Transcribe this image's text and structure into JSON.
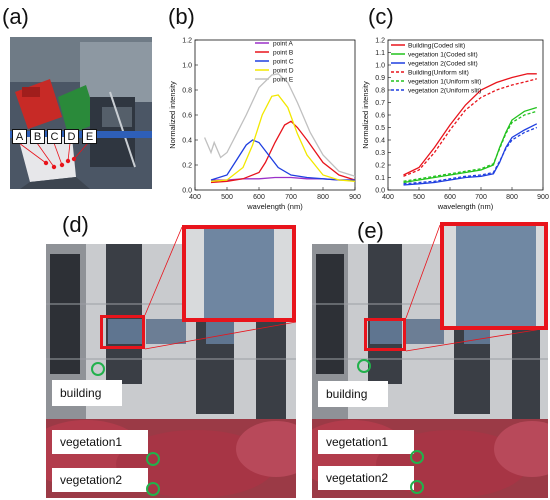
{
  "panels": {
    "a": "(a)",
    "b": "(b)",
    "c": "(c)",
    "d": "(d)",
    "e": "(e)"
  },
  "photo_a": {
    "points": [
      "A",
      "B",
      "C",
      "D",
      "E"
    ]
  },
  "photo_d": {
    "labels": {
      "building": "building",
      "vegetation1": "vegetation1",
      "vegetation2": "vegetation2"
    }
  },
  "photo_e": {
    "labels": {
      "building": "building",
      "vegetation1": "vegetation1",
      "vegetation2": "vegetation2"
    }
  },
  "colors": {
    "highlight": "#e8141c",
    "marker": "#22b14c"
  },
  "chart_data": [
    {
      "id": "b",
      "type": "line",
      "xlabel": "wavelength (nm)",
      "ylabel": "Normalized intensity",
      "xlim": [
        400,
        900
      ],
      "ylim": [
        0.0,
        1.2
      ],
      "xticks": [
        "400",
        "500",
        "600",
        "700",
        "800",
        "900"
      ],
      "yticks": [
        "0.0",
        "0.2",
        "0.4",
        "0.6",
        "0.8",
        "1.0",
        "1.2"
      ],
      "legend_position": "top-right",
      "series": [
        {
          "name": "point A",
          "color": "#9b30c8",
          "x": [
            450,
            500,
            550,
            600,
            650,
            700,
            750,
            800,
            850,
            900
          ],
          "y": [
            0.08,
            0.08,
            0.09,
            0.09,
            0.1,
            0.1,
            0.09,
            0.09,
            0.08,
            0.08
          ]
        },
        {
          "name": "point B",
          "color": "#e8141c",
          "x": [
            450,
            500,
            550,
            600,
            620,
            650,
            680,
            700,
            720,
            750,
            800,
            850,
            900
          ],
          "y": [
            0.06,
            0.07,
            0.09,
            0.14,
            0.22,
            0.38,
            0.52,
            0.55,
            0.5,
            0.4,
            0.22,
            0.12,
            0.08
          ]
        },
        {
          "name": "point C",
          "color": "#1f3fe0",
          "x": [
            450,
            500,
            530,
            560,
            580,
            600,
            630,
            660,
            700,
            750,
            800,
            850,
            900
          ],
          "y": [
            0.08,
            0.12,
            0.24,
            0.36,
            0.4,
            0.38,
            0.28,
            0.18,
            0.12,
            0.1,
            0.09,
            0.08,
            0.08
          ]
        },
        {
          "name": "point D",
          "color": "#f2e800",
          "x": [
            450,
            500,
            550,
            580,
            610,
            640,
            660,
            690,
            720,
            750,
            800,
            850,
            900
          ],
          "y": [
            0.07,
            0.08,
            0.18,
            0.36,
            0.6,
            0.75,
            0.76,
            0.66,
            0.45,
            0.28,
            0.12,
            0.08,
            0.07
          ]
        },
        {
          "name": "point E",
          "color": "#c0c0c0",
          "x": [
            430,
            450,
            460,
            480,
            500,
            530,
            560,
            600,
            640,
            660,
            690,
            720,
            760,
            800,
            850,
            900
          ],
          "y": [
            0.42,
            0.3,
            0.38,
            0.26,
            0.3,
            0.45,
            0.6,
            0.82,
            0.92,
            0.93,
            0.86,
            0.7,
            0.46,
            0.28,
            0.15,
            0.11
          ]
        }
      ]
    },
    {
      "id": "c",
      "type": "line",
      "xlabel": "wavelength (nm)",
      "ylabel": "Normalized intensity",
      "xlim": [
        400,
        900
      ],
      "ylim": [
        0.0,
        1.2
      ],
      "xticks": [
        "400",
        "500",
        "600",
        "700",
        "800",
        "900"
      ],
      "yticks": [
        "0.0",
        "0.1",
        "0.2",
        "0.3",
        "0.4",
        "0.5",
        "0.6",
        "0.7",
        "0.8",
        "0.9",
        "1.0",
        "1.1",
        "1.2"
      ],
      "legend_position": "top-left",
      "series": [
        {
          "name": "Building(Coded slit)",
          "color": "#e8141c",
          "dash": false,
          "x": [
            450,
            500,
            550,
            600,
            650,
            700,
            750,
            800,
            850,
            880
          ],
          "y": [
            0.12,
            0.18,
            0.34,
            0.52,
            0.68,
            0.8,
            0.86,
            0.9,
            0.93,
            0.93
          ]
        },
        {
          "name": "vegetation 1(Coded slit)",
          "color": "#22c21e",
          "dash": false,
          "x": [
            450,
            500,
            550,
            600,
            650,
            700,
            740,
            760,
            780,
            800,
            840,
            880
          ],
          "y": [
            0.06,
            0.08,
            0.1,
            0.12,
            0.14,
            0.16,
            0.2,
            0.34,
            0.46,
            0.56,
            0.63,
            0.66
          ]
        },
        {
          "name": "vegetation 2(Coded slit)",
          "color": "#1f3fe0",
          "dash": false,
          "x": [
            450,
            500,
            550,
            600,
            650,
            700,
            740,
            760,
            780,
            800,
            840,
            880
          ],
          "y": [
            0.04,
            0.05,
            0.06,
            0.08,
            0.1,
            0.11,
            0.13,
            0.22,
            0.34,
            0.42,
            0.48,
            0.53
          ]
        },
        {
          "name": "Building(Uniform slit)",
          "color": "#e8141c",
          "dash": true,
          "x": [
            450,
            500,
            550,
            600,
            650,
            700,
            750,
            800,
            850,
            880
          ],
          "y": [
            0.11,
            0.16,
            0.3,
            0.48,
            0.64,
            0.74,
            0.8,
            0.84,
            0.87,
            0.89
          ]
        },
        {
          "name": "vegetation 1(Uniform slit)",
          "color": "#22c21e",
          "dash": true,
          "x": [
            450,
            500,
            550,
            600,
            650,
            700,
            740,
            760,
            780,
            800,
            840,
            880
          ],
          "y": [
            0.07,
            0.09,
            0.11,
            0.13,
            0.15,
            0.17,
            0.21,
            0.33,
            0.45,
            0.54,
            0.6,
            0.63
          ]
        },
        {
          "name": "vegetation 2(Uniform slit)",
          "color": "#1f3fe0",
          "dash": true,
          "x": [
            450,
            500,
            550,
            600,
            650,
            700,
            740,
            760,
            780,
            800,
            840,
            880
          ],
          "y": [
            0.05,
            0.06,
            0.07,
            0.09,
            0.11,
            0.12,
            0.14,
            0.23,
            0.33,
            0.4,
            0.46,
            0.5
          ]
        }
      ]
    }
  ]
}
